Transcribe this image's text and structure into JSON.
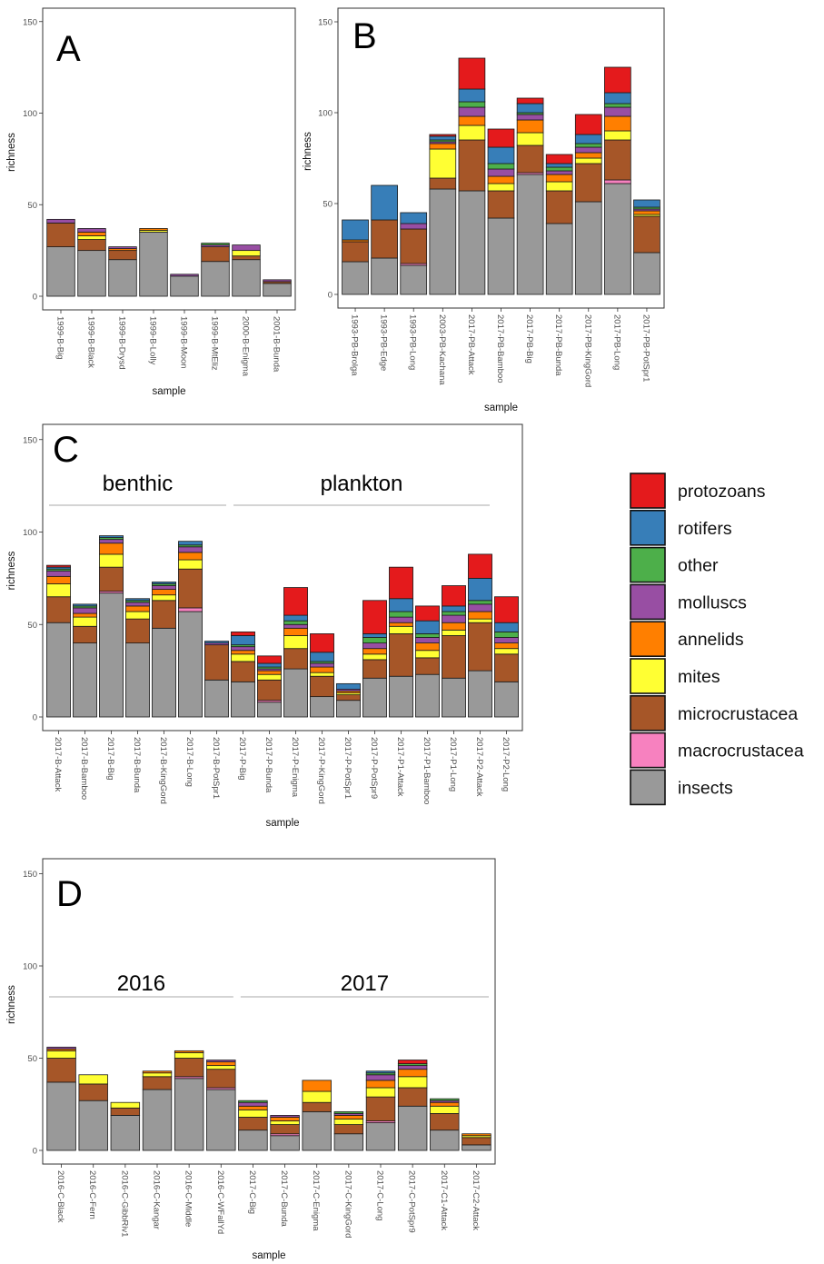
{
  "legend": {
    "items": [
      {
        "key": "protozoans",
        "label": "protozoans",
        "color": "#e41a1c"
      },
      {
        "key": "rotifers",
        "label": "rotifers",
        "color": "#377eb8"
      },
      {
        "key": "other",
        "label": "other",
        "color": "#4daf4a"
      },
      {
        "key": "molluscs",
        "label": "molluscs",
        "color": "#984ea3"
      },
      {
        "key": "annelids",
        "label": "annelids",
        "color": "#ff7f00"
      },
      {
        "key": "mites",
        "label": "mites",
        "color": "#ffff33"
      },
      {
        "key": "microcrustacea",
        "label": "microcrustacea",
        "color": "#a65628"
      },
      {
        "key": "macrocrustacea",
        "label": "macrocrustacea",
        "color": "#f781bf"
      },
      {
        "key": "insects",
        "label": "insects",
        "color": "#999999"
      }
    ]
  },
  "chart_data": [
    {
      "type": "bar",
      "stacked": true,
      "panel_label": "A",
      "xlabel": "sample",
      "ylabel": "richness",
      "ylim": [
        0,
        150
      ],
      "yticks": [
        0,
        50,
        100,
        150
      ],
      "stack_order": [
        "insects",
        "macrocrustacea",
        "microcrustacea",
        "mites",
        "annelids",
        "molluscs",
        "other",
        "rotifers",
        "protozoans"
      ],
      "groups": [],
      "categories": [
        "1999-B-Big",
        "1999-B-Black",
        "1999-B-Drysd",
        "1999-B-Lolly",
        "1999-B-Moon",
        "1999-B-MtEliz",
        "2000-B-Enigma",
        "2001-B-Bunda"
      ],
      "series": [
        {
          "name": "insects",
          "values": [
            27,
            25,
            20,
            35,
            11,
            19,
            20,
            7
          ]
        },
        {
          "name": "macrocrustacea",
          "values": [
            0,
            0,
            0,
            0,
            0,
            0,
            0,
            0
          ]
        },
        {
          "name": "microcrustacea",
          "values": [
            13,
            6,
            5,
            0,
            0,
            8,
            2,
            1
          ]
        },
        {
          "name": "mites",
          "values": [
            0,
            2,
            0,
            1,
            0,
            0,
            3,
            0
          ]
        },
        {
          "name": "annelids",
          "values": [
            0,
            2,
            1,
            1,
            0,
            0,
            0,
            0
          ]
        },
        {
          "name": "molluscs",
          "values": [
            2,
            2,
            1,
            0,
            1,
            1,
            3,
            1
          ]
        },
        {
          "name": "other",
          "values": [
            0,
            0,
            0,
            0,
            0,
            1,
            0,
            0
          ]
        },
        {
          "name": "rotifers",
          "values": [
            0,
            0,
            0,
            0,
            0,
            0,
            0,
            0
          ]
        },
        {
          "name": "protozoans",
          "values": [
            0,
            0,
            0,
            0,
            0,
            0,
            0,
            0
          ]
        }
      ]
    },
    {
      "type": "bar",
      "stacked": true,
      "panel_label": "B",
      "xlabel": "sample",
      "ylabel": "richness",
      "ylim": [
        0,
        150
      ],
      "yticks": [
        0,
        50,
        100,
        150
      ],
      "stack_order": [
        "insects",
        "macrocrustacea",
        "microcrustacea",
        "mites",
        "annelids",
        "molluscs",
        "other",
        "rotifers",
        "protozoans"
      ],
      "groups": [],
      "categories": [
        "1993-PB-Brolga",
        "1993-PB-Edge",
        "1993-PB-Long",
        "2003-PB-Kachana",
        "2017-PB-Attack",
        "2017-PB-Bamboo",
        "2017-PB-Big",
        "2017-PB-Bunda",
        "2017-PB-KingGord",
        "2017-PB-Long",
        "2017-PB-PotSpr1"
      ],
      "series": [
        {
          "name": "insects",
          "values": [
            18,
            20,
            16,
            58,
            57,
            42,
            66,
            39,
            51,
            61,
            23
          ]
        },
        {
          "name": "macrocrustacea",
          "values": [
            0,
            0,
            1,
            0,
            0,
            0,
            1,
            0,
            0,
            2,
            0
          ]
        },
        {
          "name": "microcrustacea",
          "values": [
            11,
            21,
            19,
            6,
            28,
            15,
            15,
            18,
            21,
            22,
            20
          ]
        },
        {
          "name": "mites",
          "values": [
            0,
            0,
            0,
            16,
            8,
            4,
            7,
            5,
            3,
            5,
            1
          ]
        },
        {
          "name": "annelids",
          "values": [
            1,
            0,
            0,
            3,
            5,
            4,
            7,
            4,
            3,
            8,
            2
          ]
        },
        {
          "name": "molluscs",
          "values": [
            0,
            0,
            3,
            1,
            5,
            4,
            3,
            2,
            3,
            5,
            1
          ]
        },
        {
          "name": "other",
          "values": [
            0,
            0,
            0,
            1,
            3,
            3,
            1,
            2,
            2,
            2,
            1
          ]
        },
        {
          "name": "rotifers",
          "values": [
            11,
            19,
            6,
            2,
            7,
            9,
            5,
            2,
            5,
            6,
            4
          ]
        },
        {
          "name": "protozoans",
          "values": [
            0,
            0,
            0,
            1,
            17,
            10,
            3,
            5,
            11,
            14,
            0
          ]
        }
      ]
    },
    {
      "type": "bar",
      "stacked": true,
      "panel_label": "C",
      "xlabel": "sample",
      "ylabel": "richness",
      "ylim": [
        0,
        150
      ],
      "yticks": [
        0,
        50,
        100,
        150
      ],
      "stack_order": [
        "insects",
        "macrocrustacea",
        "microcrustacea",
        "mites",
        "annelids",
        "molluscs",
        "other",
        "rotifers",
        "protozoans"
      ],
      "groups": [
        {
          "label": "benthic",
          "from": 0,
          "to": 6
        },
        {
          "label": "plankton",
          "from": 7,
          "to": 16
        }
      ],
      "categories": [
        "2017-B-Attack",
        "2017-B-Bamboo",
        "2017-B-Big",
        "2017-B-Bunda",
        "2017-B-KingGord",
        "2017-B-Long",
        "2017-B-PotSpr1",
        "2017-P-Big",
        "2017-P-Bunda",
        "2017-P-Enigma",
        "2017-P-KingGord",
        "2017-P-PotSpr1",
        "2017-P-PotSpr9",
        "2017-P1-Attack",
        "2017-P1-Bamboo",
        "2017-P1-Long",
        "2017-P2-Attack",
        "2017-P2-Long"
      ],
      "series": [
        {
          "name": "insects",
          "values": [
            51,
            40,
            67,
            40,
            48,
            57,
            20,
            19,
            8,
            26,
            11,
            9,
            21,
            22,
            23,
            21,
            25,
            19
          ]
        },
        {
          "name": "macrocrustacea",
          "values": [
            0,
            0,
            1,
            0,
            0,
            2,
            0,
            0,
            1,
            0,
            0,
            0,
            0,
            0,
            0,
            0,
            0,
            0
          ]
        },
        {
          "name": "microcrustacea",
          "values": [
            14,
            9,
            13,
            13,
            15,
            21,
            19,
            11,
            11,
            11,
            11,
            3,
            10,
            23,
            9,
            23,
            26,
            15
          ]
        },
        {
          "name": "mites",
          "values": [
            7,
            5,
            7,
            4,
            3,
            5,
            0,
            4,
            3,
            7,
            2,
            1,
            3,
            4,
            4,
            3,
            2,
            3
          ]
        },
        {
          "name": "annelids",
          "values": [
            4,
            2,
            6,
            3,
            3,
            4,
            0,
            2,
            2,
            4,
            3,
            1,
            3,
            2,
            4,
            4,
            4,
            3
          ]
        },
        {
          "name": "molluscs",
          "values": [
            3,
            3,
            2,
            2,
            2,
            3,
            1,
            2,
            1,
            2,
            2,
            1,
            3,
            3,
            3,
            4,
            4,
            3
          ]
        },
        {
          "name": "other",
          "values": [
            1,
            1,
            1,
            1,
            1,
            1,
            0,
            1,
            1,
            2,
            1,
            0,
            3,
            3,
            2,
            2,
            2,
            3
          ]
        },
        {
          "name": "rotifers",
          "values": [
            1,
            1,
            1,
            1,
            1,
            2,
            1,
            5,
            2,
            3,
            5,
            3,
            2,
            7,
            7,
            3,
            12,
            5
          ]
        },
        {
          "name": "protozoans",
          "values": [
            1,
            0,
            0,
            0,
            0,
            0,
            0,
            2,
            4,
            15,
            10,
            0,
            18,
            17,
            8,
            11,
            13,
            14
          ]
        }
      ]
    },
    {
      "type": "bar",
      "stacked": true,
      "panel_label": "D",
      "xlabel": "sample",
      "ylabel": "richness",
      "ylim": [
        0,
        150
      ],
      "yticks": [
        0,
        50,
        100,
        150
      ],
      "stack_order": [
        "insects",
        "macrocrustacea",
        "microcrustacea",
        "mites",
        "annelids",
        "molluscs",
        "other",
        "rotifers",
        "protozoans"
      ],
      "groups": [
        {
          "label": "2016",
          "from": 0,
          "to": 5
        },
        {
          "label": "2017",
          "from": 6,
          "to": 13
        }
      ],
      "categories": [
        "2016-C-Black",
        "2016-C-Fern",
        "2016-C-GibbRiv1",
        "2016-C-Kangar",
        "2016-C-Middle",
        "2016-C-WFallYd",
        "2017-C-Big",
        "2017-C-Bunda",
        "2017-C-Enigma",
        "2017-C-KingGord",
        "2017-C-Long",
        "2017-C-PotSpr9",
        "2017-C1-Attack",
        "2017-C2-Attack"
      ],
      "series": [
        {
          "name": "insects",
          "values": [
            37,
            27,
            19,
            33,
            39,
            33,
            11,
            8,
            21,
            9,
            15,
            24,
            11,
            3
          ]
        },
        {
          "name": "macrocrustacea",
          "values": [
            0,
            0,
            0,
            0,
            1,
            1,
            0,
            1,
            0,
            0,
            1,
            0,
            0,
            0
          ]
        },
        {
          "name": "microcrustacea",
          "values": [
            13,
            9,
            4,
            7,
            10,
            10,
            7,
            5,
            5,
            5,
            13,
            10,
            9,
            4
          ]
        },
        {
          "name": "mites",
          "values": [
            4,
            5,
            3,
            2,
            3,
            2,
            4,
            2,
            6,
            3,
            5,
            6,
            4,
            1
          ]
        },
        {
          "name": "annelids",
          "values": [
            1,
            0,
            0,
            1,
            1,
            2,
            2,
            2,
            6,
            2,
            4,
            4,
            2,
            1
          ]
        },
        {
          "name": "molluscs",
          "values": [
            1,
            0,
            0,
            0,
            0,
            1,
            2,
            1,
            0,
            1,
            3,
            2,
            1,
            0
          ]
        },
        {
          "name": "other",
          "values": [
            0,
            0,
            0,
            0,
            0,
            0,
            1,
            0,
            0,
            1,
            1,
            1,
            1,
            0
          ]
        },
        {
          "name": "rotifers",
          "values": [
            0,
            0,
            0,
            0,
            0,
            0,
            0,
            0,
            0,
            0,
            1,
            0,
            0,
            0
          ]
        },
        {
          "name": "protozoans",
          "values": [
            0,
            0,
            0,
            0,
            0,
            0,
            0,
            0,
            0,
            0,
            0,
            2,
            0,
            0
          ]
        }
      ]
    }
  ]
}
